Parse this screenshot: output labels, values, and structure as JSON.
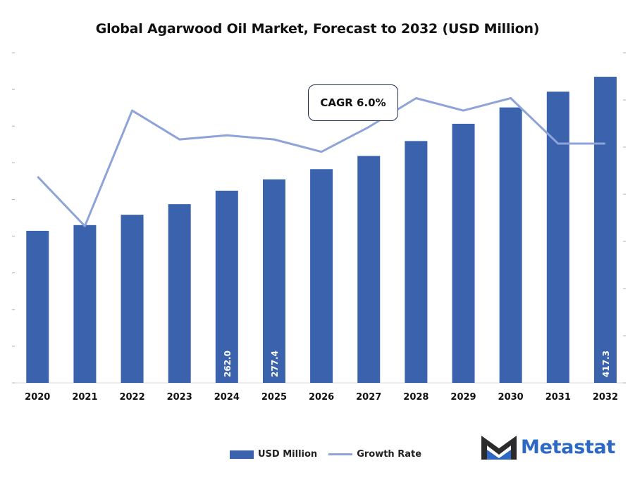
{
  "chart_data": {
    "type": "bar",
    "title": "Global Agarwood Oil Market, Forecast to 2032 (USD Million)",
    "categories": [
      "2020",
      "2021",
      "2022",
      "2023",
      "2024",
      "2025",
      "2026",
      "2027",
      "2028",
      "2029",
      "2030",
      "2031",
      "2032"
    ],
    "series": [
      {
        "name": "USD Million",
        "type": "bar",
        "color": "#3a62ad",
        "values": [
          207.3,
          215.1,
          229.2,
          243.6,
          262.0,
          277.4,
          291.4,
          309.3,
          329.7,
          353.2,
          375.5,
          397.0,
          417.3
        ],
        "labels": {
          "4": "262.0",
          "5": "277.4",
          "12": "417.3"
        }
      },
      {
        "name": "Growth Rate",
        "type": "line",
        "color": "#8ea3d8",
        "values": [
          5.0,
          3.8,
          6.6,
          5.9,
          6.0,
          5.9,
          5.6,
          6.2,
          6.9,
          6.6,
          6.9,
          5.8,
          5.8
        ]
      }
    ],
    "ylim_left": [
      0,
      450
    ],
    "ylim_right": [
      0,
      8
    ],
    "annotation": "CAGR 6.0%",
    "legend_position": "bottom-center",
    "grid": false
  },
  "brand": {
    "name": "Metastat"
  }
}
